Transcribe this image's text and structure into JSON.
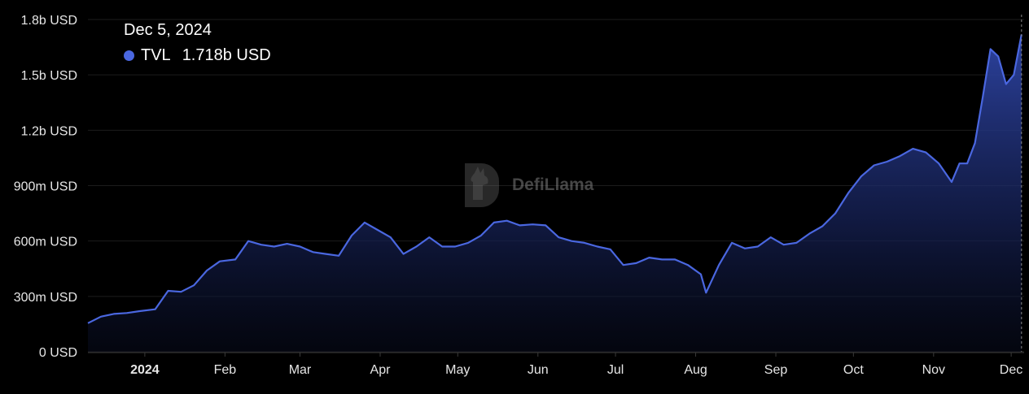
{
  "watermark": "DefiLlama",
  "tooltip": {
    "date": "Dec 5, 2024",
    "series": "TVL",
    "value": "1.718b USD",
    "color": "#4a67e0"
  },
  "chart_data": {
    "type": "area",
    "title": "",
    "xlabel": "",
    "ylabel": "",
    "grid": "horizontal",
    "y_unit": "USD",
    "ylim": [
      0,
      1800000000
    ],
    "y_ticks": [
      {
        "value": 0,
        "label": "0 USD"
      },
      {
        "value": 300000000,
        "label": "300m USD"
      },
      {
        "value": 600000000,
        "label": "600m USD"
      },
      {
        "value": 900000000,
        "label": "900m USD"
      },
      {
        "value": 1200000000,
        "label": "1.2b USD"
      },
      {
        "value": 1500000000,
        "label": "1.5b USD"
      },
      {
        "value": 1800000000,
        "label": "1.8b USD"
      }
    ],
    "xlim": [
      "2023-12-10",
      "2024-12-06"
    ],
    "x_ticks": [
      {
        "date": "2024-01-01",
        "label": "2024",
        "bold": true
      },
      {
        "date": "2024-02-01",
        "label": "Feb"
      },
      {
        "date": "2024-03-01",
        "label": "Mar"
      },
      {
        "date": "2024-04-01",
        "label": "Apr"
      },
      {
        "date": "2024-05-01",
        "label": "May"
      },
      {
        "date": "2024-06-01",
        "label": "Jun"
      },
      {
        "date": "2024-07-01",
        "label": "Jul"
      },
      {
        "date": "2024-08-01",
        "label": "Aug"
      },
      {
        "date": "2024-09-01",
        "label": "Sep"
      },
      {
        "date": "2024-10-01",
        "label": "Oct"
      },
      {
        "date": "2024-11-01",
        "label": "Nov"
      },
      {
        "date": "2024-12-01",
        "label": "Dec"
      }
    ],
    "series": [
      {
        "name": "TVL",
        "color": "#4a67e0",
        "x": [
          "2023-12-10",
          "2023-12-15",
          "2023-12-20",
          "2023-12-25",
          "2023-12-30",
          "2024-01-05",
          "2024-01-10",
          "2024-01-15",
          "2024-01-20",
          "2024-01-25",
          "2024-01-30",
          "2024-02-05",
          "2024-02-10",
          "2024-02-15",
          "2024-02-20",
          "2024-02-25",
          "2024-03-01",
          "2024-03-06",
          "2024-03-11",
          "2024-03-16",
          "2024-03-21",
          "2024-03-26",
          "2024-03-31",
          "2024-04-05",
          "2024-04-10",
          "2024-04-15",
          "2024-04-20",
          "2024-04-25",
          "2024-04-30",
          "2024-05-05",
          "2024-05-10",
          "2024-05-15",
          "2024-05-20",
          "2024-05-25",
          "2024-05-30",
          "2024-06-04",
          "2024-06-09",
          "2024-06-14",
          "2024-06-19",
          "2024-06-24",
          "2024-06-29",
          "2024-07-04",
          "2024-07-09",
          "2024-07-14",
          "2024-07-19",
          "2024-07-24",
          "2024-07-29",
          "2024-08-03",
          "2024-08-05",
          "2024-08-10",
          "2024-08-15",
          "2024-08-20",
          "2024-08-25",
          "2024-08-30",
          "2024-09-04",
          "2024-09-09",
          "2024-09-14",
          "2024-09-19",
          "2024-09-24",
          "2024-09-29",
          "2024-10-04",
          "2024-10-09",
          "2024-10-14",
          "2024-10-19",
          "2024-10-24",
          "2024-10-29",
          "2024-11-03",
          "2024-11-08",
          "2024-11-11",
          "2024-11-14",
          "2024-11-17",
          "2024-11-20",
          "2024-11-23",
          "2024-11-26",
          "2024-11-29",
          "2024-12-02",
          "2024-12-05"
        ],
        "values": [
          155000000,
          190000000,
          205000000,
          210000000,
          220000000,
          230000000,
          330000000,
          325000000,
          360000000,
          440000000,
          490000000,
          500000000,
          600000000,
          580000000,
          570000000,
          585000000,
          570000000,
          540000000,
          530000000,
          520000000,
          630000000,
          700000000,
          660000000,
          620000000,
          530000000,
          570000000,
          620000000,
          570000000,
          570000000,
          590000000,
          630000000,
          700000000,
          710000000,
          685000000,
          690000000,
          685000000,
          620000000,
          600000000,
          590000000,
          570000000,
          555000000,
          470000000,
          480000000,
          510000000,
          500000000,
          500000000,
          470000000,
          420000000,
          320000000,
          470000000,
          590000000,
          560000000,
          570000000,
          620000000,
          580000000,
          590000000,
          640000000,
          680000000,
          750000000,
          860000000,
          950000000,
          1010000000,
          1030000000,
          1060000000,
          1100000000,
          1080000000,
          1020000000,
          920000000,
          1020000000,
          1020000000,
          1130000000,
          1380000000,
          1640000000,
          1600000000,
          1450000000,
          1500000000,
          1718000000
        ]
      }
    ]
  }
}
